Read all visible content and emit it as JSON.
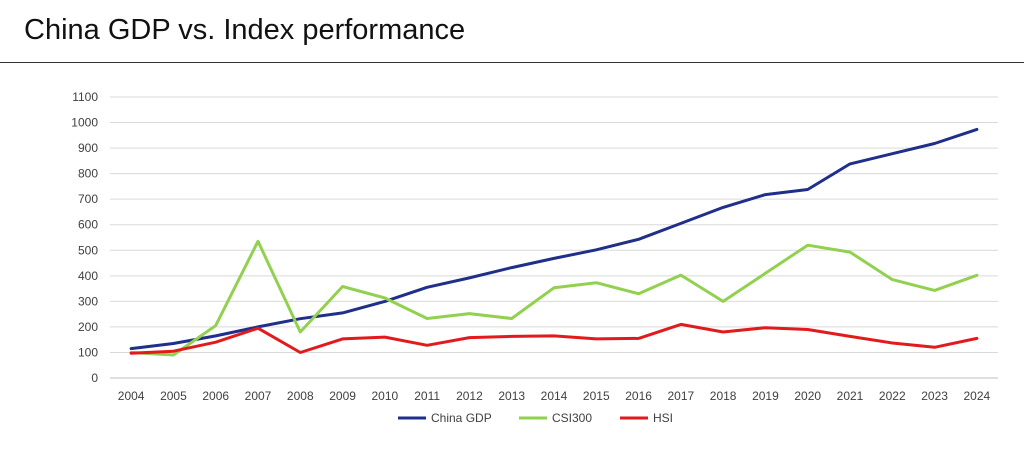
{
  "page": {
    "title": "China GDP vs. Index performance"
  },
  "chart_data": {
    "type": "line",
    "title": "China GDP vs. Index performance",
    "xlabel": "",
    "ylabel": "",
    "ylim": [
      0,
      1100
    ],
    "yticks": [
      0,
      100,
      200,
      300,
      400,
      500,
      600,
      700,
      800,
      900,
      1000,
      1100
    ],
    "grid": true,
    "legend_position": "bottom",
    "categories": [
      "2004",
      "2005",
      "2006",
      "2007",
      "2008",
      "2009",
      "2010",
      "2011",
      "2012",
      "2013",
      "2014",
      "2015",
      "2016",
      "2017",
      "2018",
      "2019",
      "2020",
      "2021",
      "2022",
      "2023",
      "2024"
    ],
    "series": [
      {
        "name": "China GDP",
        "color": "#1f2f8a",
        "values": [
          115,
          135,
          165,
          200,
          232,
          255,
          300,
          355,
          392,
          432,
          468,
          502,
          543,
          605,
          668,
          718,
          738,
          838,
          878,
          918,
          973
        ]
      },
      {
        "name": "CSI300",
        "color": "#92d050",
        "values": [
          100,
          90,
          205,
          535,
          180,
          358,
          313,
          233,
          252,
          233,
          353,
          373,
          330,
          403,
          300,
          410,
          520,
          493,
          385,
          343,
          402
        ]
      },
      {
        "name": "HSI",
        "color": "#e31a1c",
        "values": [
          97,
          105,
          140,
          195,
          100,
          153,
          160,
          128,
          158,
          163,
          165,
          153,
          155,
          210,
          180,
          197,
          190,
          163,
          137,
          120,
          155
        ]
      }
    ]
  }
}
